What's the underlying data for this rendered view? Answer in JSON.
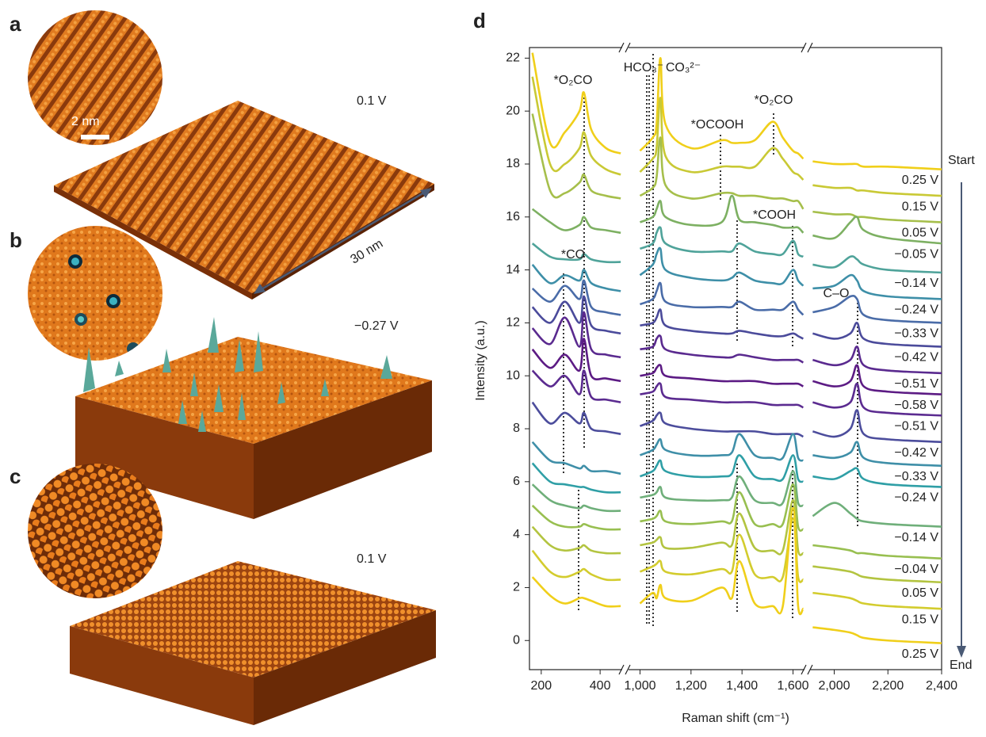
{
  "panel_labels": [
    "a",
    "b",
    "c",
    "d"
  ],
  "stm_panels": [
    {
      "voltage": "0.1 V"
    },
    {
      "voltage": "−0.27 V"
    },
    {
      "voltage": "0.1 V"
    }
  ],
  "scale_bar": "2 nm",
  "lateral_size": "30 nm",
  "chart_data": {
    "type": "line",
    "xlabel": "Raman shift (cm⁻¹)",
    "ylabel": "Intensity (a.u.)",
    "x": [
      170,
      230,
      280,
      330,
      345,
      370,
      420,
      470,
      1000,
      1050,
      1065,
      1080,
      1100,
      1200,
      1320,
      1360,
      1390,
      1450,
      1520,
      1560,
      1600,
      1620,
      1640,
      1920,
      2000,
      2060,
      2085,
      2110,
      2200,
      2400
    ],
    "xsegments": [
      [
        160,
        475
      ],
      [
        955,
        1645
      ],
      [
        1910,
        2400
      ]
    ],
    "xticks": [
      200,
      400,
      {
        "value": 1000,
        "label": "1,000"
      },
      {
        "value": 1200,
        "label": "1,200"
      },
      {
        "value": 1400,
        "label": "1,400"
      },
      {
        "value": 1600,
        "label": "1,600"
      },
      {
        "value": 2000,
        "label": "2,000"
      },
      {
        "value": 2200,
        "label": "2,200"
      },
      {
        "value": 2400,
        "label": "2,400"
      }
    ],
    "ylim": [
      -1.1,
      22.4
    ],
    "yticks": [
      0,
      2,
      4,
      6,
      8,
      10,
      12,
      14,
      16,
      18,
      20,
      22
    ],
    "series": [
      {
        "name": "0.25 V",
        "color": "#f0cf1a",
        "values": [
          22.2,
          18.8,
          19.2,
          20.0,
          20.7,
          19.3,
          18.6,
          18.4,
          18.5,
          19.0,
          19.5,
          22.0,
          19.5,
          18.6,
          18.9,
          18.8,
          18.8,
          18.9,
          19.6,
          19.0,
          18.5,
          18.4,
          18.2,
          18.1,
          18.0,
          18.0,
          18.0,
          17.9,
          17.9,
          17.8
        ]
      },
      {
        "name": "0.15 V",
        "color": "#c9c935",
        "values": [
          21.3,
          18.0,
          18.0,
          18.6,
          19.2,
          18.3,
          17.8,
          17.6,
          17.7,
          18.2,
          18.6,
          20.5,
          18.3,
          17.7,
          17.9,
          17.9,
          17.9,
          17.9,
          18.6,
          18.2,
          17.7,
          17.6,
          17.4,
          17.2,
          17.1,
          17.1,
          17.0,
          17.0,
          16.9,
          16.8
        ]
      },
      {
        "name": "0.05 V",
        "color": "#a6bf4b",
        "values": [
          19.9,
          17.0,
          16.9,
          17.3,
          17.6,
          17.0,
          16.8,
          16.7,
          16.8,
          17.1,
          17.5,
          19.0,
          17.2,
          16.7,
          16.9,
          16.9,
          16.8,
          16.8,
          16.7,
          16.7,
          16.6,
          16.6,
          16.3,
          16.2,
          16.1,
          16.1,
          16.0,
          16.0,
          15.9,
          15.8
        ]
      },
      {
        "name": "−0.05 V",
        "color": "#7db062",
        "values": [
          16.3,
          15.8,
          15.5,
          15.7,
          16.0,
          15.6,
          15.5,
          15.4,
          15.8,
          16.0,
          16.3,
          16.6,
          16.0,
          15.7,
          15.8,
          16.8,
          15.9,
          15.8,
          15.7,
          15.6,
          15.6,
          15.6,
          15.4,
          15.3,
          15.2,
          15.8,
          16.0,
          15.5,
          15.2,
          15.0
        ]
      },
      {
        "name": "−0.14 V",
        "color": "#4fa39a",
        "values": [
          15.0,
          14.5,
          14.4,
          14.4,
          14.6,
          14.4,
          14.3,
          14.3,
          14.8,
          15.0,
          15.4,
          15.6,
          15.0,
          14.7,
          14.7,
          14.7,
          15.0,
          14.7,
          14.6,
          14.6,
          15.1,
          14.6,
          14.5,
          14.2,
          14.1,
          14.5,
          14.4,
          14.2,
          14.0,
          13.9
        ]
      },
      {
        "name": "−0.24 V",
        "color": "#3e8fa8",
        "values": [
          14.2,
          13.5,
          13.8,
          13.6,
          14.0,
          13.5,
          13.3,
          13.2,
          13.8,
          14.2,
          14.6,
          14.8,
          14.0,
          13.7,
          13.6,
          13.7,
          13.9,
          13.6,
          13.5,
          13.5,
          14.0,
          13.6,
          13.4,
          13.3,
          13.4,
          13.8,
          13.6,
          13.2,
          13.0,
          12.9
        ]
      },
      {
        "name": "−0.33 V",
        "color": "#4a6ca8",
        "values": [
          13.3,
          12.8,
          13.4,
          12.9,
          13.6,
          12.6,
          12.4,
          12.3,
          12.7,
          12.9,
          13.2,
          13.5,
          12.8,
          12.6,
          12.6,
          12.6,
          12.8,
          12.5,
          12.5,
          12.5,
          12.8,
          12.5,
          12.3,
          12.4,
          12.6,
          13.0,
          12.9,
          12.3,
          12.1,
          12.0
        ]
      },
      {
        "name": "−0.42 V",
        "color": "#4b4b9b",
        "values": [
          12.6,
          12.0,
          12.8,
          12.0,
          13.0,
          11.9,
          11.7,
          11.6,
          11.9,
          12.0,
          12.2,
          12.5,
          11.9,
          11.7,
          11.6,
          11.6,
          11.7,
          11.6,
          11.5,
          11.5,
          11.6,
          11.5,
          11.4,
          11.6,
          11.4,
          11.6,
          12.0,
          11.4,
          11.2,
          11.1
        ]
      },
      {
        "name": "−0.51 V",
        "color": "#5a2a8f",
        "values": [
          11.8,
          11.2,
          12.2,
          11.1,
          12.4,
          11.0,
          10.8,
          10.7,
          11.0,
          11.1,
          11.4,
          11.5,
          11.0,
          10.8,
          10.7,
          10.7,
          10.8,
          10.7,
          10.6,
          10.6,
          10.6,
          10.6,
          10.5,
          10.6,
          10.4,
          10.6,
          11.1,
          10.4,
          10.2,
          10.1
        ]
      },
      {
        "name": "−0.58 V",
        "color": "#5c1b84",
        "values": [
          11.0,
          10.3,
          10.8,
          10.2,
          11.4,
          10.0,
          9.9,
          9.8,
          10.0,
          10.1,
          10.3,
          10.4,
          10.0,
          9.9,
          9.8,
          9.8,
          9.8,
          9.8,
          9.7,
          9.7,
          9.7,
          9.7,
          9.6,
          9.8,
          9.6,
          9.8,
          10.4,
          9.6,
          9.4,
          9.3
        ]
      },
      {
        "name": "−0.51 V",
        "color": "#5b2b90",
        "values": [
          10.2,
          9.6,
          10.0,
          9.3,
          10.2,
          9.2,
          9.1,
          9.0,
          9.3,
          9.4,
          9.6,
          9.7,
          9.2,
          9.1,
          9.0,
          9.0,
          9.0,
          9.0,
          8.9,
          8.9,
          8.9,
          8.9,
          8.8,
          9.0,
          8.8,
          9.0,
          9.7,
          8.8,
          8.6,
          8.5
        ]
      },
      {
        "name": "−0.42 V",
        "color": "#4c4d9c",
        "values": [
          9.0,
          8.2,
          8.6,
          8.2,
          8.6,
          8.0,
          7.9,
          7.8,
          8.1,
          8.3,
          8.5,
          8.6,
          8.2,
          8.0,
          7.9,
          7.9,
          7.9,
          7.9,
          7.8,
          7.8,
          7.8,
          7.8,
          7.7,
          7.9,
          7.7,
          8.0,
          8.7,
          7.8,
          7.6,
          7.5
        ]
      },
      {
        "name": "−0.33 V",
        "color": "#3f8fa8",
        "values": [
          7.5,
          6.8,
          6.7,
          6.5,
          6.6,
          6.4,
          6.4,
          6.3,
          7.0,
          7.2,
          7.4,
          7.6,
          7.2,
          7.0,
          7.0,
          7.1,
          7.8,
          7.0,
          6.9,
          6.9,
          7.8,
          6.9,
          6.8,
          7.0,
          6.9,
          7.1,
          7.5,
          6.9,
          6.7,
          6.6
        ]
      },
      {
        "name": "−0.24 V",
        "color": "#2f9fa6",
        "values": [
          6.7,
          6.0,
          5.9,
          5.8,
          5.8,
          5.7,
          5.6,
          5.6,
          6.2,
          6.4,
          6.6,
          6.8,
          6.4,
          6.2,
          6.2,
          6.3,
          7.0,
          6.2,
          6.1,
          6.1,
          7.0,
          6.1,
          6.0,
          6.2,
          6.1,
          6.4,
          6.5,
          6.1,
          5.9,
          5.8
        ]
      },
      {
        "name": "−0.14 V",
        "color": "#6faf7a",
        "values": [
          5.9,
          5.3,
          5.1,
          5.0,
          5.1,
          5.0,
          4.9,
          4.9,
          5.4,
          5.5,
          5.6,
          5.8,
          5.4,
          5.3,
          5.3,
          5.4,
          6.2,
          5.3,
          5.2,
          5.2,
          6.4,
          5.2,
          5.1,
          4.7,
          5.2,
          4.8,
          4.6,
          4.5,
          4.4,
          4.3
        ]
      },
      {
        "name": "−0.04 V",
        "color": "#98bf50",
        "values": [
          5.1,
          4.5,
          4.3,
          4.3,
          4.4,
          4.3,
          4.2,
          4.2,
          4.5,
          4.6,
          4.7,
          4.9,
          4.5,
          4.4,
          4.5,
          4.5,
          5.6,
          4.4,
          4.4,
          4.4,
          5.9,
          4.3,
          4.2,
          3.6,
          3.5,
          3.4,
          3.3,
          3.3,
          3.2,
          3.1
        ]
      },
      {
        "name": "0.05 V",
        "color": "#b3c440",
        "values": [
          4.3,
          3.6,
          3.4,
          3.5,
          3.6,
          3.4,
          3.3,
          3.3,
          3.6,
          3.7,
          3.8,
          3.9,
          3.5,
          3.5,
          3.7,
          3.6,
          4.8,
          3.5,
          3.4,
          3.4,
          5.3,
          3.4,
          3.3,
          2.8,
          2.7,
          2.6,
          2.5,
          2.4,
          2.3,
          2.2
        ]
      },
      {
        "name": "0.15 V",
        "color": "#d3cc2e",
        "values": [
          3.4,
          2.6,
          2.4,
          2.6,
          2.7,
          2.5,
          2.3,
          2.3,
          2.6,
          2.8,
          2.9,
          3.0,
          2.6,
          2.5,
          2.7,
          2.6,
          4.0,
          2.5,
          2.4,
          2.4,
          4.6,
          2.4,
          2.3,
          1.8,
          1.7,
          1.6,
          1.5,
          1.4,
          1.3,
          1.2
        ]
      },
      {
        "name": "0.25 V",
        "color": "#f0cf1a",
        "values": [
          2.4,
          1.7,
          1.4,
          1.6,
          1.6,
          1.5,
          1.3,
          1.3,
          1.4,
          1.8,
          1.6,
          2.1,
          1.6,
          1.5,
          2.0,
          1.6,
          3.0,
          1.4,
          1.3,
          1.3,
          5.0,
          1.3,
          1.2,
          0.5,
          0.4,
          0.3,
          0.2,
          0.1,
          0.0,
          -0.1
        ]
      }
    ],
    "annotations": [
      "*O₂CO",
      "HCO₃⁻",
      "CO₃²⁻",
      "*OCOOH",
      "*O₂CO",
      "*COOH",
      "*CO",
      "C–O"
    ],
    "arrow_labels": [
      "Start",
      "End"
    ]
  }
}
